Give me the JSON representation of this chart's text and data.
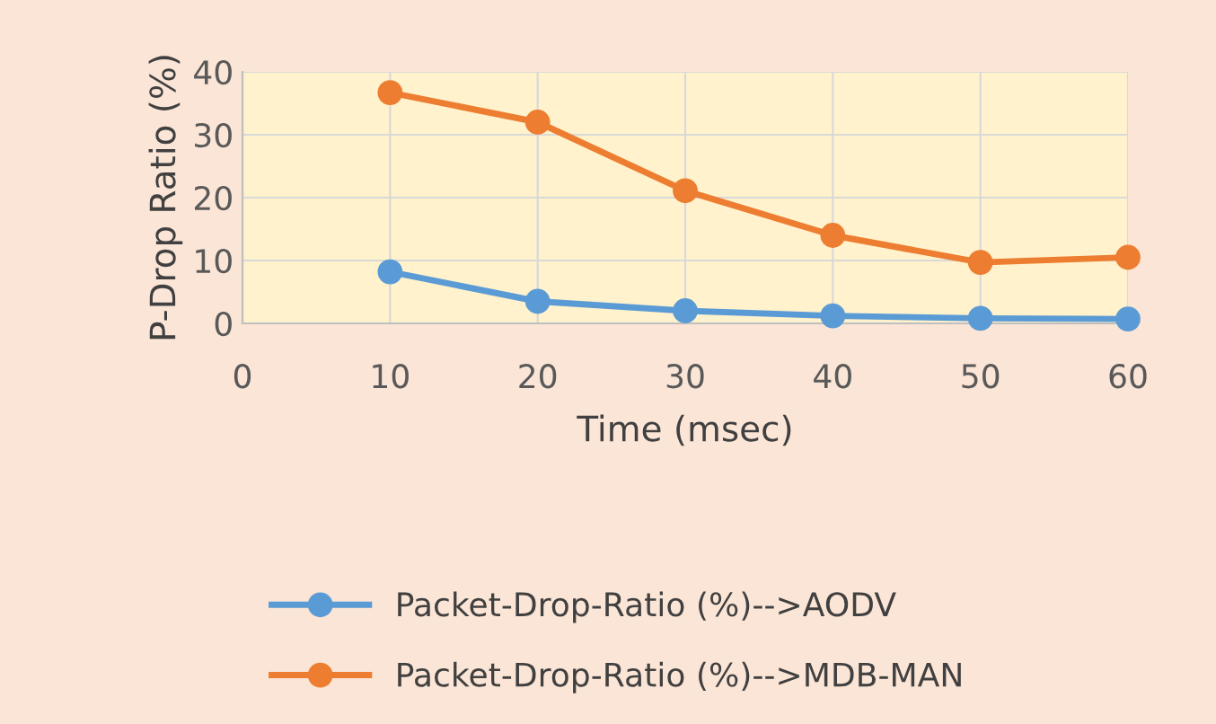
{
  "chart_data": {
    "type": "line",
    "xlabel": "Time (msec)",
    "ylabel": "P-Drop Ratio (%)",
    "x": [
      10,
      20,
      30,
      40,
      50,
      60
    ],
    "series": [
      {
        "name": "Packet-Drop-Ratio (%)-->AODV",
        "color": "#5b9bd5",
        "values": [
          8.2,
          3.5,
          2.0,
          1.2,
          0.8,
          0.7
        ]
      },
      {
        "name": "Packet-Drop-Ratio (%)-->MDB-MAN",
        "color": "#ed7d31",
        "values": [
          36.7,
          32.0,
          21.1,
          14.0,
          9.7,
          10.5
        ]
      }
    ],
    "xlim": [
      0,
      60
    ],
    "xticks": [
      0,
      10,
      20,
      30,
      40,
      50,
      60
    ],
    "ylim": [
      0,
      40
    ],
    "yticks": [
      0,
      10,
      20,
      30,
      40
    ],
    "grid": true,
    "legend": "bottom",
    "marker": "circle",
    "line_style": "solid"
  }
}
